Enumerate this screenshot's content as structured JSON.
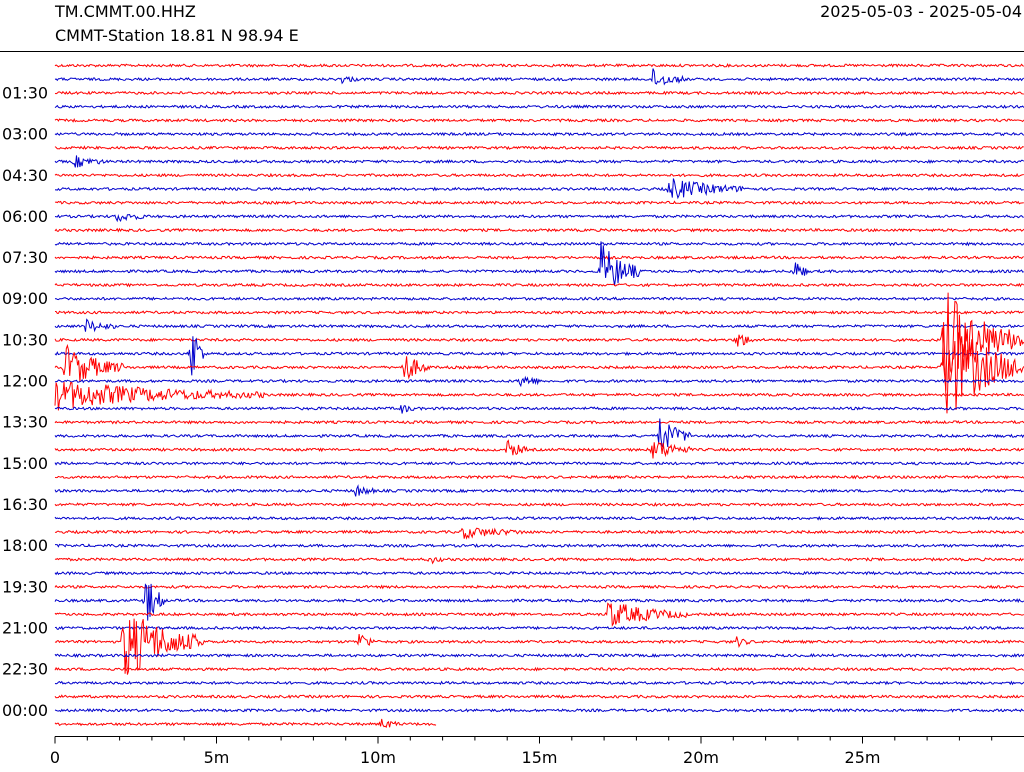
{
  "header": {
    "station_code": "TM.CMMT.00.HHZ",
    "station_info": "CMMT-Station  18.81 N 98.94 E",
    "date_range": "2025-05-03 - 2025-05-04"
  },
  "chart_data": {
    "type": "line",
    "title": "",
    "xlabel": "",
    "ylabel": "",
    "x_unit": "minutes",
    "xlim": [
      0,
      30
    ],
    "x_ticks": [
      {
        "value": 0,
        "label": "0"
      },
      {
        "value": 5,
        "label": "5m"
      },
      {
        "value": 10,
        "label": "10m"
      },
      {
        "value": 15,
        "label": "15m"
      },
      {
        "value": 20,
        "label": "20m"
      },
      {
        "value": 25,
        "label": "25m"
      }
    ],
    "y_ticks": [
      "01:30",
      "03:00",
      "04:30",
      "06:00",
      "07:30",
      "09:00",
      "10:30",
      "12:00",
      "13:30",
      "15:00",
      "16:30",
      "18:00",
      "19:30",
      "21:00",
      "22:30",
      "00:00"
    ],
    "line_minutes": 30,
    "trace_count": 49,
    "last_trace_end_minute": 11.8,
    "colors": [
      "#ff0000",
      "#0000cc"
    ],
    "events": [
      {
        "line": 1,
        "minute": 18.5,
        "amplitude": 10,
        "duration": 1.0
      },
      {
        "line": 1,
        "minute": 8.8,
        "amplitude": 4,
        "duration": 0.6
      },
      {
        "line": 7,
        "minute": 0.6,
        "amplitude": 6,
        "duration": 1.0
      },
      {
        "line": 9,
        "minute": 19.0,
        "amplitude": 11,
        "duration": 2.5
      },
      {
        "line": 11,
        "minute": 1.9,
        "amplitude": 5,
        "duration": 1.0
      },
      {
        "line": 15,
        "minute": 16.9,
        "amplitude": 30,
        "duration": 1.2
      },
      {
        "line": 15,
        "minute": 22.9,
        "amplitude": 12,
        "duration": 0.4
      },
      {
        "line": 19,
        "minute": 0.9,
        "amplitude": 7,
        "duration": 1.0
      },
      {
        "line": 20,
        "minute": 21.1,
        "amplitude": 10,
        "duration": 0.5
      },
      {
        "line": 20,
        "minute": 27.5,
        "amplitude": 55,
        "duration": 2.5
      },
      {
        "line": 21,
        "minute": 4.2,
        "amplitude": 38,
        "duration": 0.4
      },
      {
        "line": 22,
        "minute": 0.3,
        "amplitude": 24,
        "duration": 1.8
      },
      {
        "line": 22,
        "minute": 10.8,
        "amplitude": 16,
        "duration": 0.8
      },
      {
        "line": 22,
        "minute": 27.5,
        "amplitude": 60,
        "duration": 2.5
      },
      {
        "line": 23,
        "minute": 14.4,
        "amplitude": 8,
        "duration": 0.6
      },
      {
        "line": 24,
        "minute": 0.0,
        "amplitude": 15,
        "duration": 6.5
      },
      {
        "line": 25,
        "minute": 10.7,
        "amplitude": 5,
        "duration": 0.4
      },
      {
        "line": 27,
        "minute": 18.7,
        "amplitude": 20,
        "duration": 1.0
      },
      {
        "line": 28,
        "minute": 14.0,
        "amplitude": 10,
        "duration": 0.6
      },
      {
        "line": 28,
        "minute": 18.5,
        "amplitude": 12,
        "duration": 1.2
      },
      {
        "line": 31,
        "minute": 9.3,
        "amplitude": 6,
        "duration": 0.6
      },
      {
        "line": 34,
        "minute": 12.6,
        "amplitude": 6,
        "duration": 2.0
      },
      {
        "line": 36,
        "minute": 11.6,
        "amplitude": 4,
        "duration": 0.4
      },
      {
        "line": 39,
        "minute": 2.8,
        "amplitude": 28,
        "duration": 0.6
      },
      {
        "line": 40,
        "minute": 17.1,
        "amplitude": 14,
        "duration": 2.5
      },
      {
        "line": 42,
        "minute": 2.1,
        "amplitude": 40,
        "duration": 2.5
      },
      {
        "line": 42,
        "minute": 9.4,
        "amplitude": 10,
        "duration": 0.5
      },
      {
        "line": 42,
        "minute": 21.1,
        "amplitude": 5,
        "duration": 0.4
      },
      {
        "line": 48,
        "minute": 10.1,
        "amplitude": 5,
        "duration": 0.6
      }
    ]
  }
}
